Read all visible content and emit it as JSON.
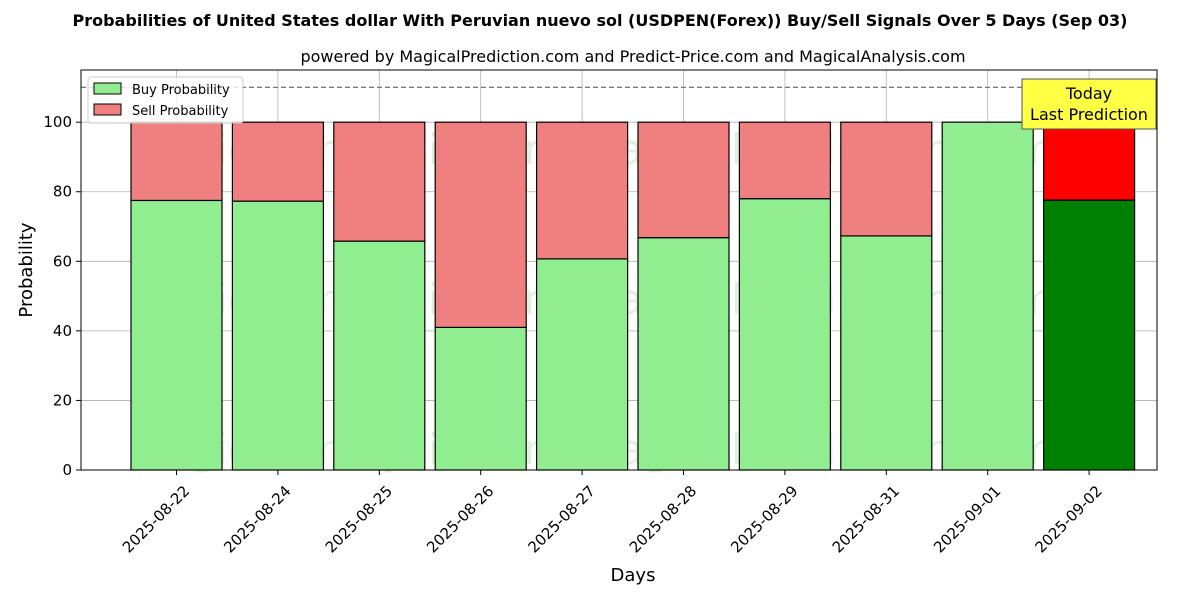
{
  "chart_data": {
    "type": "bar",
    "stacked": true,
    "title": "Probabilities of United States dollar With Peruvian nuevo sol (USDPEN(Forex)) Buy/Sell Signals Over 5 Days (Sep 03)",
    "subtitle": "powered by MagicalPrediction.com and Predict-Price.com and MagicalAnalysis.com",
    "xlabel": "Days",
    "ylabel": "Probability",
    "ylim": [
      0,
      115
    ],
    "yticks": [
      0,
      20,
      40,
      60,
      80,
      100
    ],
    "grid": true,
    "reference_line": 110,
    "categories": [
      "2025-08-22",
      "2025-08-24",
      "2025-08-25",
      "2025-08-26",
      "2025-08-27",
      "2025-08-28",
      "2025-08-29",
      "2025-08-31",
      "2025-09-01",
      "2025-09-02"
    ],
    "series": [
      {
        "name": "Buy Probability",
        "values": [
          77.5,
          77.3,
          65.8,
          41.0,
          60.7,
          66.8,
          78.0,
          67.3,
          100.0,
          77.6
        ]
      },
      {
        "name": "Sell Probability",
        "values": [
          22.5,
          22.7,
          34.2,
          59.0,
          39.3,
          33.2,
          22.0,
          32.7,
          0.0,
          22.4
        ]
      }
    ],
    "legend": {
      "position": "top-left",
      "entries": [
        "Buy Probability",
        "Sell Probability"
      ]
    },
    "annotation": {
      "lines": [
        "Today",
        "Last Prediction"
      ]
    },
    "highlight_index": 9,
    "watermarks": [
      "MagicalAnalysis.com",
      "MagicalPrediction.com"
    ],
    "colors": {
      "buy": "#90ee90",
      "sell": "#f08080",
      "buy_highlight": "#008000",
      "sell_highlight": "#ff0000",
      "annotation_bg": "#ffff44",
      "grid": "#b0b0b0"
    }
  }
}
